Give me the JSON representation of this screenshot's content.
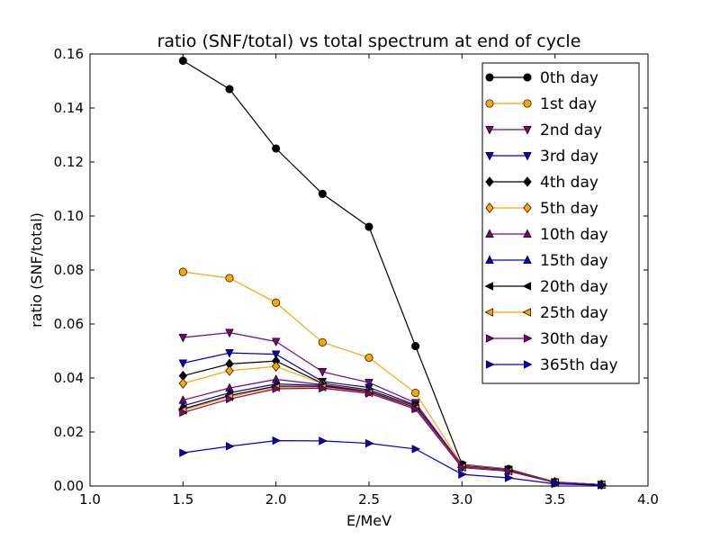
{
  "chart_data": {
    "type": "line",
    "title": "ratio (SNF/total) vs total spectrum at end of cycle",
    "xlabel": "E/MeV",
    "ylabel": "ratio (SNF/total)",
    "xlim": [
      1.0,
      4.0
    ],
    "ylim": [
      0.0,
      0.16
    ],
    "xticks": [
      "1.0",
      "1.5",
      "2.0",
      "2.5",
      "3.0",
      "3.5",
      "4.0"
    ],
    "yticks": [
      "0.00",
      "0.02",
      "0.04",
      "0.06",
      "0.08",
      "0.10",
      "0.12",
      "0.14",
      "0.16"
    ],
    "grid": false,
    "legend_position": "upper-right",
    "x": [
      1.5,
      1.75,
      2.0,
      2.25,
      2.5,
      2.75,
      3.0,
      3.25,
      3.5,
      3.75
    ],
    "series": [
      {
        "name": "0th day",
        "color": "#000000",
        "marker": "circle",
        "values": [
          0.1575,
          0.147,
          0.125,
          0.1082,
          0.096,
          0.0518,
          0.008,
          0.0063,
          0.0015,
          0.0005
        ]
      },
      {
        "name": "1st day",
        "color": "#ffa500",
        "marker": "circle",
        "values": [
          0.0793,
          0.077,
          0.0679,
          0.0532,
          0.0475,
          0.0345,
          0.0078,
          0.0062,
          0.0015,
          0.0005
        ]
      },
      {
        "name": "2nd day",
        "color": "#800080",
        "marker": "triangle-down",
        "values": [
          0.055,
          0.0568,
          0.0535,
          0.0423,
          0.0383,
          0.0308,
          0.0076,
          0.0061,
          0.0014,
          0.0005
        ]
      },
      {
        "name": "3rd day",
        "color": "#0000cd",
        "marker": "triangle-down",
        "values": [
          0.0455,
          0.0493,
          0.0488,
          0.0387,
          0.0365,
          0.03,
          0.0074,
          0.006,
          0.0014,
          0.0005
        ]
      },
      {
        "name": "4th day",
        "color": "#000000",
        "marker": "diamond",
        "values": [
          0.0408,
          0.0452,
          0.0463,
          0.038,
          0.0356,
          0.0296,
          0.0073,
          0.0059,
          0.0014,
          0.0005
        ]
      },
      {
        "name": "5th day",
        "color": "#ffa500",
        "marker": "diamond",
        "values": [
          0.038,
          0.0427,
          0.0443,
          0.0378,
          0.0352,
          0.0293,
          0.0072,
          0.0058,
          0.0014,
          0.0005
        ]
      },
      {
        "name": "10th day",
        "color": "#800080",
        "marker": "triangle-up",
        "values": [
          0.0318,
          0.0363,
          0.0395,
          0.0375,
          0.035,
          0.0291,
          0.0071,
          0.0057,
          0.0014,
          0.0005
        ]
      },
      {
        "name": "15th day",
        "color": "#0000cd",
        "marker": "triangle-up",
        "values": [
          0.0297,
          0.0345,
          0.0378,
          0.0372,
          0.0348,
          0.0289,
          0.007,
          0.0056,
          0.0013,
          0.0005
        ]
      },
      {
        "name": "20th day",
        "color": "#000000",
        "marker": "triangle-left",
        "values": [
          0.0285,
          0.0335,
          0.037,
          0.0368,
          0.0346,
          0.0288,
          0.0069,
          0.0056,
          0.0013,
          0.0005
        ]
      },
      {
        "name": "25th day",
        "color": "#ffa500",
        "marker": "triangle-left",
        "values": [
          0.028,
          0.033,
          0.0365,
          0.0366,
          0.0345,
          0.0287,
          0.0069,
          0.0055,
          0.0013,
          0.0005
        ]
      },
      {
        "name": "30th day",
        "color": "#800080",
        "marker": "triangle-right",
        "values": [
          0.0272,
          0.0322,
          0.036,
          0.0362,
          0.0343,
          0.0285,
          0.0068,
          0.0055,
          0.0013,
          0.0005
        ]
      },
      {
        "name": "365th day",
        "color": "#0000cd",
        "marker": "triangle-right",
        "values": [
          0.0123,
          0.0147,
          0.0168,
          0.0167,
          0.0158,
          0.0137,
          0.0043,
          0.003,
          0.0008,
          0.0003
        ]
      }
    ]
  }
}
